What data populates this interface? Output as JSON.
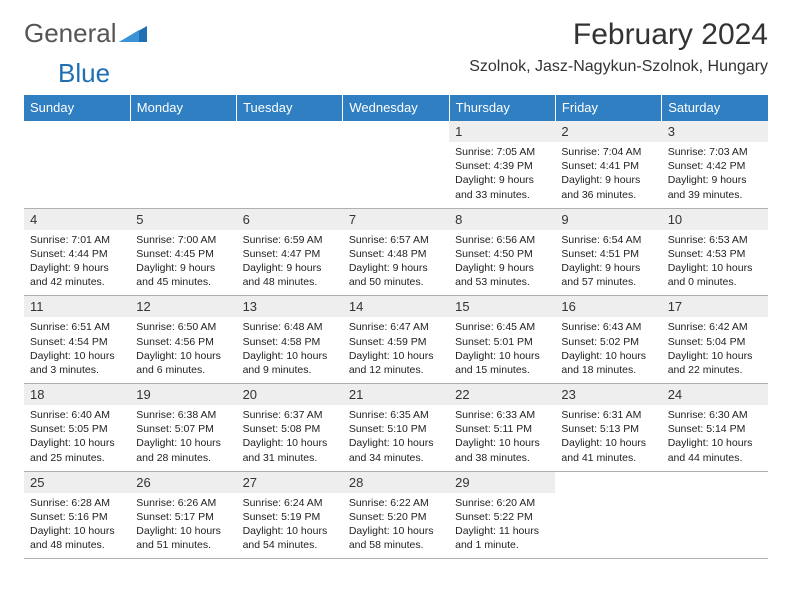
{
  "logo": {
    "part1": "General",
    "part2": "Blue"
  },
  "title": "February 2024",
  "location": "Szolnok, Jasz-Nagykun-Szolnok, Hungary",
  "colors": {
    "header_bg": "#2f7fc2",
    "header_text": "#ffffff",
    "daynum_bg": "#eeeeee",
    "row_top_border": "#2f7fc2",
    "row_bottom_border": "#b0b0b0",
    "logo_gray": "#555555",
    "logo_blue": "#1f6fb2"
  },
  "day_headers": [
    "Sunday",
    "Monday",
    "Tuesday",
    "Wednesday",
    "Thursday",
    "Friday",
    "Saturday"
  ],
  "weeks": [
    [
      {
        "n": "",
        "lines": []
      },
      {
        "n": "",
        "lines": []
      },
      {
        "n": "",
        "lines": []
      },
      {
        "n": "",
        "lines": []
      },
      {
        "n": "1",
        "lines": [
          "Sunrise: 7:05 AM",
          "Sunset: 4:39 PM",
          "Daylight: 9 hours",
          "and 33 minutes."
        ]
      },
      {
        "n": "2",
        "lines": [
          "Sunrise: 7:04 AM",
          "Sunset: 4:41 PM",
          "Daylight: 9 hours",
          "and 36 minutes."
        ]
      },
      {
        "n": "3",
        "lines": [
          "Sunrise: 7:03 AM",
          "Sunset: 4:42 PM",
          "Daylight: 9 hours",
          "and 39 minutes."
        ]
      }
    ],
    [
      {
        "n": "4",
        "lines": [
          "Sunrise: 7:01 AM",
          "Sunset: 4:44 PM",
          "Daylight: 9 hours",
          "and 42 minutes."
        ]
      },
      {
        "n": "5",
        "lines": [
          "Sunrise: 7:00 AM",
          "Sunset: 4:45 PM",
          "Daylight: 9 hours",
          "and 45 minutes."
        ]
      },
      {
        "n": "6",
        "lines": [
          "Sunrise: 6:59 AM",
          "Sunset: 4:47 PM",
          "Daylight: 9 hours",
          "and 48 minutes."
        ]
      },
      {
        "n": "7",
        "lines": [
          "Sunrise: 6:57 AM",
          "Sunset: 4:48 PM",
          "Daylight: 9 hours",
          "and 50 minutes."
        ]
      },
      {
        "n": "8",
        "lines": [
          "Sunrise: 6:56 AM",
          "Sunset: 4:50 PM",
          "Daylight: 9 hours",
          "and 53 minutes."
        ]
      },
      {
        "n": "9",
        "lines": [
          "Sunrise: 6:54 AM",
          "Sunset: 4:51 PM",
          "Daylight: 9 hours",
          "and 57 minutes."
        ]
      },
      {
        "n": "10",
        "lines": [
          "Sunrise: 6:53 AM",
          "Sunset: 4:53 PM",
          "Daylight: 10 hours",
          "and 0 minutes."
        ]
      }
    ],
    [
      {
        "n": "11",
        "lines": [
          "Sunrise: 6:51 AM",
          "Sunset: 4:54 PM",
          "Daylight: 10 hours",
          "and 3 minutes."
        ]
      },
      {
        "n": "12",
        "lines": [
          "Sunrise: 6:50 AM",
          "Sunset: 4:56 PM",
          "Daylight: 10 hours",
          "and 6 minutes."
        ]
      },
      {
        "n": "13",
        "lines": [
          "Sunrise: 6:48 AM",
          "Sunset: 4:58 PM",
          "Daylight: 10 hours",
          "and 9 minutes."
        ]
      },
      {
        "n": "14",
        "lines": [
          "Sunrise: 6:47 AM",
          "Sunset: 4:59 PM",
          "Daylight: 10 hours",
          "and 12 minutes."
        ]
      },
      {
        "n": "15",
        "lines": [
          "Sunrise: 6:45 AM",
          "Sunset: 5:01 PM",
          "Daylight: 10 hours",
          "and 15 minutes."
        ]
      },
      {
        "n": "16",
        "lines": [
          "Sunrise: 6:43 AM",
          "Sunset: 5:02 PM",
          "Daylight: 10 hours",
          "and 18 minutes."
        ]
      },
      {
        "n": "17",
        "lines": [
          "Sunrise: 6:42 AM",
          "Sunset: 5:04 PM",
          "Daylight: 10 hours",
          "and 22 minutes."
        ]
      }
    ],
    [
      {
        "n": "18",
        "lines": [
          "Sunrise: 6:40 AM",
          "Sunset: 5:05 PM",
          "Daylight: 10 hours",
          "and 25 minutes."
        ]
      },
      {
        "n": "19",
        "lines": [
          "Sunrise: 6:38 AM",
          "Sunset: 5:07 PM",
          "Daylight: 10 hours",
          "and 28 minutes."
        ]
      },
      {
        "n": "20",
        "lines": [
          "Sunrise: 6:37 AM",
          "Sunset: 5:08 PM",
          "Daylight: 10 hours",
          "and 31 minutes."
        ]
      },
      {
        "n": "21",
        "lines": [
          "Sunrise: 6:35 AM",
          "Sunset: 5:10 PM",
          "Daylight: 10 hours",
          "and 34 minutes."
        ]
      },
      {
        "n": "22",
        "lines": [
          "Sunrise: 6:33 AM",
          "Sunset: 5:11 PM",
          "Daylight: 10 hours",
          "and 38 minutes."
        ]
      },
      {
        "n": "23",
        "lines": [
          "Sunrise: 6:31 AM",
          "Sunset: 5:13 PM",
          "Daylight: 10 hours",
          "and 41 minutes."
        ]
      },
      {
        "n": "24",
        "lines": [
          "Sunrise: 6:30 AM",
          "Sunset: 5:14 PM",
          "Daylight: 10 hours",
          "and 44 minutes."
        ]
      }
    ],
    [
      {
        "n": "25",
        "lines": [
          "Sunrise: 6:28 AM",
          "Sunset: 5:16 PM",
          "Daylight: 10 hours",
          "and 48 minutes."
        ]
      },
      {
        "n": "26",
        "lines": [
          "Sunrise: 6:26 AM",
          "Sunset: 5:17 PM",
          "Daylight: 10 hours",
          "and 51 minutes."
        ]
      },
      {
        "n": "27",
        "lines": [
          "Sunrise: 6:24 AM",
          "Sunset: 5:19 PM",
          "Daylight: 10 hours",
          "and 54 minutes."
        ]
      },
      {
        "n": "28",
        "lines": [
          "Sunrise: 6:22 AM",
          "Sunset: 5:20 PM",
          "Daylight: 10 hours",
          "and 58 minutes."
        ]
      },
      {
        "n": "29",
        "lines": [
          "Sunrise: 6:20 AM",
          "Sunset: 5:22 PM",
          "Daylight: 11 hours",
          "and 1 minute."
        ]
      },
      {
        "n": "",
        "lines": []
      },
      {
        "n": "",
        "lines": []
      }
    ]
  ]
}
